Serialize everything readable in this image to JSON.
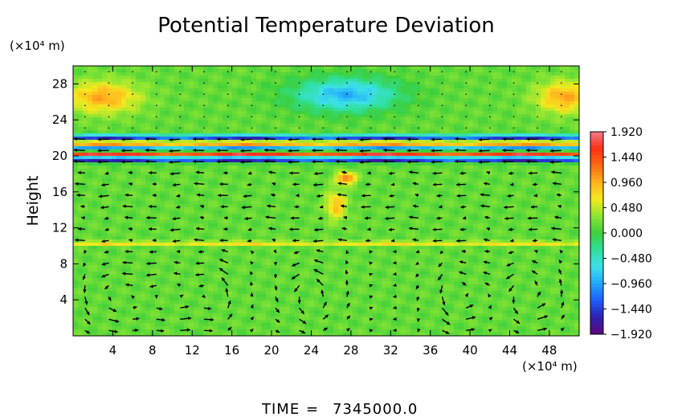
{
  "chart_data": {
    "type": "heatmap",
    "title": "Potential Temperature Deviation",
    "ylabel": "Height",
    "x_unit_label": "(×10⁴ m)",
    "y_unit_label": "(×10⁴ m)",
    "xlim": [
      0,
      51
    ],
    "ylim": [
      0,
      30
    ],
    "x_ticks": [
      4,
      8,
      12,
      16,
      20,
      24,
      28,
      32,
      36,
      40,
      44,
      48
    ],
    "y_ticks": [
      4,
      8,
      12,
      16,
      20,
      24,
      28
    ],
    "colorbar": {
      "min": -1.92,
      "max": 1.92,
      "tick_values": [
        1.92,
        1.44,
        0.96,
        0.48,
        0.0,
        -0.48,
        -0.96,
        -1.44,
        -1.92
      ],
      "tick_labels": [
        "1.920",
        "1.440",
        "0.960",
        "0.480",
        "0.000",
        "−0.480",
        "−0.960",
        "−1.440",
        "−1.920"
      ],
      "colors": [
        "#5b0a7a",
        "#2d1fb0",
        "#1f5cff",
        "#1fa8ff",
        "#3de0e8",
        "#2fe09a",
        "#3ccf3c",
        "#8ee632",
        "#f4ea1e",
        "#ffb21e",
        "#ff6a14",
        "#ff2f14",
        "#f07a8a"
      ]
    },
    "background_value": 0.15,
    "features": [
      {
        "kind": "blob",
        "x": 3,
        "y": 26.5,
        "value": 1.0,
        "rx": 4.5,
        "ry": 2.2
      },
      {
        "kind": "blob",
        "x": 49.5,
        "y": 26.5,
        "value": 1.0,
        "rx": 3.5,
        "ry": 2.2
      },
      {
        "kind": "blob",
        "x": 27.5,
        "y": 26.8,
        "value": -0.9,
        "rx": 6.5,
        "ry": 2.3
      },
      {
        "kind": "band",
        "y": 22.0,
        "value": -1.5,
        "thickness": 0.35
      },
      {
        "kind": "band",
        "y": 21.4,
        "value": 1.2,
        "thickness": 0.3
      },
      {
        "kind": "band",
        "y": 20.8,
        "value": -1.2,
        "thickness": 0.3
      },
      {
        "kind": "band",
        "y": 20.2,
        "value": 1.4,
        "thickness": 0.3
      },
      {
        "kind": "band",
        "y": 19.6,
        "value": -1.9,
        "thickness": 0.3
      },
      {
        "kind": "band",
        "y": 10.3,
        "value": 0.7,
        "thickness": 0.2
      },
      {
        "kind": "blob",
        "x": 27.5,
        "y": 17.5,
        "value": 1.3,
        "rx": 1.2,
        "ry": 0.8
      },
      {
        "kind": "blob",
        "x": 26.5,
        "y": 14.5,
        "value": 0.9,
        "rx": 1.3,
        "ry": 2.0
      }
    ],
    "vector_field": {
      "grid_dx": 2.4,
      "grid_dy": 1.25,
      "descriptor": "wind vectors; strongest below 10, rotating cells near x=4,9,14,24,39,46"
    },
    "footer_label": "TIME",
    "footer_value": "7345000.0"
  }
}
